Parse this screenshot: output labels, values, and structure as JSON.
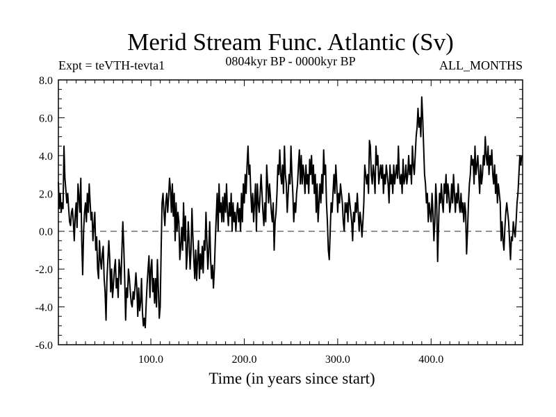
{
  "chart_data": {
    "type": "line",
    "title": "Merid Stream Func. Atlantic (Sv)",
    "subtitle_left": "Expt = teVTH-tevta1",
    "subtitle_center": "0804kyr BP - 0000kyr BP",
    "subtitle_right": "ALL_MONTHS",
    "xlabel": "Time (in years since start)",
    "ylabel": "",
    "xlim": [
      1,
      498
    ],
    "ylim": [
      -6,
      8
    ],
    "xticks": [
      100,
      200,
      300,
      400
    ],
    "xtick_labels": [
      "100.0",
      "200.0",
      "300.0",
      "400.0"
    ],
    "yticks": [
      -6,
      -4,
      -2,
      0,
      2,
      4,
      6,
      8
    ],
    "ytick_labels": [
      "-6.0",
      "-4.0",
      "-2.0",
      "0.0",
      "2.0",
      "4.0",
      "6.0",
      "8.0"
    ],
    "reference_line": {
      "y": 0,
      "style": "dashed"
    },
    "series": [
      {
        "name": "Merid Stream Func. Atlantic",
        "x_start": 1,
        "x_step": 1,
        "values": [
          2.6,
          1.2,
          2.0,
          1.0,
          1.5,
          1.2,
          4.5,
          2.8,
          2.2,
          1.5,
          2.0,
          1.2,
          0.5,
          0.3,
          1.0,
          1.2,
          0.5,
          -0.5,
          0.8,
          1.5,
          0.2,
          2.5,
          1.8,
          1.0,
          2.8,
          -0.5,
          -2.3,
          0.0,
          1.0,
          1.5,
          0.5,
          2.0,
          1.0,
          2.5,
          1.5,
          0.6,
          1.0,
          -0.5,
          0.3,
          1.0,
          -1.0,
          -0.3,
          -2.0,
          -2.5,
          -0.5,
          -1.5,
          -2.0,
          -1.2,
          -0.8,
          -2.5,
          -3.2,
          -4.7,
          -2.5,
          -1.5,
          -0.5,
          -1.5,
          -3.2,
          -2.0,
          -3.5,
          -2.8,
          -2.0,
          -1.5,
          -3.0,
          -2.5,
          -3.5,
          -1.5,
          -2.0,
          -2.8,
          -1.0,
          0.5,
          -0.8,
          -2.5,
          -4.7,
          -3.0,
          -3.5,
          -2.0,
          -2.5,
          -3.2,
          -3.8,
          -4.0,
          -3.2,
          -3.6,
          -3.0,
          -2.2,
          -3.0,
          -4.5,
          -3.0,
          -4.2,
          -3.8,
          -2.5,
          -4.3,
          -5.0,
          -4.6,
          -5.1,
          -3.8,
          -2.8,
          -2.0,
          -1.3,
          -3.5,
          -2.0,
          -1.5,
          -3.2,
          -2.5,
          -3.8,
          -2.5,
          -4.0,
          -1.5,
          -3.0,
          -4.6,
          -4.0,
          -1.0,
          1.5,
          2.0,
          1.0,
          0.3,
          1.5,
          2.0,
          1.0,
          1.8,
          2.8,
          2.2,
          1.0,
          2.5,
          0.8,
          2.0,
          -0.5,
          1.5,
          0.0,
          1.0,
          0.5,
          -1.5,
          -0.8,
          0.2,
          -1.0,
          1.5,
          -0.5,
          0.8,
          -2.0,
          -1.2,
          0.5,
          -0.5,
          -2.0,
          -1.0,
          1.2,
          -0.3,
          -1.5,
          -2.5,
          -1.0,
          -2.6,
          -1.5,
          -0.5,
          -2.5,
          -1.2,
          -2.0,
          -0.8,
          -2.2,
          -0.5,
          -1.0,
          1.0,
          -0.5,
          -2.0,
          -1.0,
          0.5,
          -1.5,
          -2.5,
          -1.8,
          -3.0,
          -2.0,
          -0.5,
          0.8,
          2.0,
          0.0,
          2.5,
          1.0,
          1.5,
          0.5,
          1.8,
          0.5,
          2.0,
          1.0,
          2.5,
          1.0,
          0.3,
          1.5,
          0.8,
          2.0,
          0.0,
          1.5,
          0.5,
          1.0,
          0.0,
          1.0,
          1.5,
          0.5,
          1.2,
          0.0,
          2.0,
          0.5,
          2.5,
          1.5,
          3.0,
          2.0,
          3.5,
          4.5,
          3.0,
          3.5,
          2.0,
          1.0,
          2.0,
          0.5,
          1.5,
          2.5,
          0.0,
          2.5,
          1.5,
          1.0,
          2.0,
          3.0,
          2.0,
          1.0,
          0.3,
          1.5,
          0.5,
          3.5,
          2.5,
          1.5,
          2.5,
          1.8,
          1.0,
          0.5,
          1.5,
          -1.0,
          0.5,
          1.0,
          2.0,
          3.5,
          3.0,
          4.3,
          3.0,
          2.5,
          3.5,
          2.0,
          4.5,
          3.0,
          2.5,
          1.0,
          2.0,
          3.0,
          2.5,
          4.5,
          3.0,
          2.0,
          0.5,
          1.5,
          1.0,
          2.0,
          2.5,
          3.5,
          4.3,
          2.5,
          4.0,
          2.5,
          3.5,
          3.0,
          2.0,
          3.5,
          2.5,
          3.0,
          2.0,
          3.8,
          3.0,
          4.0,
          2.5,
          3.5,
          2.0,
          3.0,
          1.0,
          2.5,
          0.5,
          1.5,
          2.5,
          1.5,
          3.0,
          2.0,
          4.3,
          3.0,
          3.5,
          1.5,
          0.5,
          -1.0,
          -1.5,
          0.0,
          1.5,
          1.0,
          2.0,
          3.0,
          2.0,
          3.5,
          2.5,
          1.0,
          2.0,
          1.5,
          2.5,
          2.0,
          1.5,
          0.5,
          0.0,
          1.5,
          1.0,
          1.5,
          0.5,
          2.0,
          1.5,
          1.0,
          0.5,
          -0.5,
          1.0,
          0.5,
          1.5,
          1.0,
          2.0,
          1.0,
          0.0,
          1.0,
          0.5,
          -0.3,
          0.5,
          1.5,
          3.5,
          3.0,
          2.5,
          3.0,
          2.0,
          4.8,
          4.5,
          3.0,
          2.5,
          3.5,
          3.0,
          2.0,
          4.5,
          3.5,
          4.0,
          2.5,
          3.0,
          3.5,
          2.8,
          3.5,
          2.0,
          3.0,
          2.5,
          3.5,
          3.0,
          2.5,
          1.5,
          3.5,
          2.5,
          3.0,
          2.0,
          3.5,
          2.5,
          3.0,
          3.5,
          2.8,
          4.5,
          3.0,
          2.5,
          3.0,
          2.0,
          3.8,
          2.5,
          2.8,
          3.5,
          2.5,
          3.0,
          4.0,
          3.0,
          3.5,
          2.5,
          4.5,
          3.5,
          3.0,
          4.0,
          5.0,
          5.5,
          6.5,
          5.5,
          6.0,
          5.0,
          7.1,
          6.0,
          4.5,
          3.0,
          2.5,
          1.5,
          2.0,
          0.5,
          1.5,
          1.0,
          0.5,
          2.0,
          1.0,
          -0.5,
          0.5,
          2.5,
          1.5,
          -1.6,
          0.3,
          2.0,
          1.5,
          2.5,
          1.5,
          1.0,
          2.5,
          2.0,
          3.0,
          1.5,
          2.5,
          2.0,
          1.0,
          1.5,
          2.5,
          1.5,
          3.0,
          2.0,
          1.0,
          2.0,
          1.5,
          2.5,
          1.5,
          1.0,
          2.0,
          1.0,
          1.5,
          0.5,
          1.5,
          1.0,
          -1.2,
          0.0,
          1.5,
          2.5,
          3.0,
          4.0,
          3.5,
          3.8,
          2.5,
          4.5,
          3.0,
          3.5,
          4.0,
          3.0,
          2.0,
          3.5,
          2.5,
          3.0,
          4.0,
          3.5,
          5.0,
          4.0,
          3.5,
          4.5,
          3.0,
          4.0,
          3.5,
          4.3,
          3.0,
          2.5,
          3.5,
          2.0,
          3.0,
          1.5,
          2.5,
          2.0,
          1.5,
          -0.5,
          0.5,
          -0.5,
          -1.0,
          0.2,
          1.0,
          1.5,
          1.0,
          0.5,
          -0.5,
          -1.5,
          -0.3,
          -0.5,
          0.5,
          0.0,
          -0.3,
          0.5,
          1.5,
          2.0,
          3.0,
          4.0,
          3.5,
          4.0
        ]
      }
    ]
  }
}
